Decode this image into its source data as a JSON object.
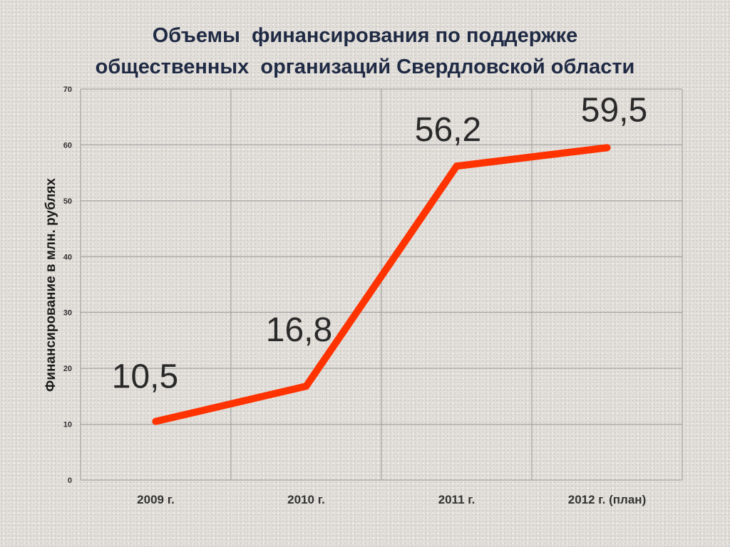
{
  "title": {
    "line1": "Объемы  финансирования по поддержке",
    "line2": "общественных  организаций Свердловской области"
  },
  "chart_data": {
    "type": "line",
    "title": "Объемы  финансирования по поддержке общественных  организаций Свердловской области",
    "ylabel": "Финансирование  в млн. рублях",
    "xlabel": "",
    "categories": [
      "2009 г.",
      "2010 г.",
      "2011 г.",
      "2012 г. (план)"
    ],
    "values": [
      10.5,
      16.8,
      56.2,
      59.5
    ],
    "data_labels": [
      "10,5",
      "16,8",
      "56,2",
      "59,5"
    ],
    "ylim": [
      0,
      70
    ],
    "yticks": [
      0,
      10,
      20,
      30,
      40,
      50,
      60,
      70
    ],
    "ytick_labels": [
      "0",
      "10",
      "20",
      "30",
      "40",
      "50",
      "60",
      "70"
    ],
    "grid": true,
    "legend": "none",
    "colors": {
      "line": "#ff3300",
      "grid": "#9a9a9a",
      "text": "#2a2a2a",
      "title": "#1f2a44"
    }
  }
}
